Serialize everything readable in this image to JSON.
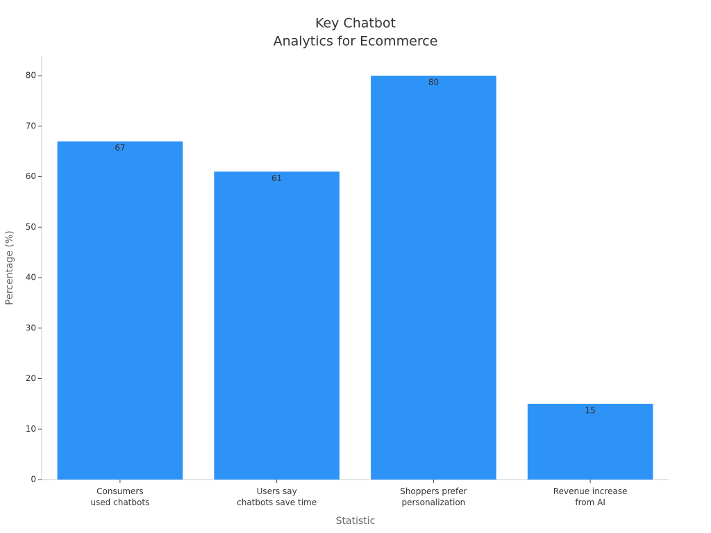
{
  "chart_data": {
    "type": "bar",
    "title": [
      "Key Chatbot",
      "Analytics for Ecommerce"
    ],
    "categories": [
      "Consumers\nused chatbots",
      "Users say\nchatbots save time",
      "Shoppers prefer\npersonalization",
      "Revenue increase\nfrom AI"
    ],
    "values": [
      67,
      61,
      80,
      15
    ],
    "color": "#2e93f7",
    "x_label": "Statistic",
    "y_label": "Percentage (%)",
    "ylim": [
      0,
      84
    ],
    "yticks": [
      0,
      10,
      20,
      30,
      40,
      50,
      60,
      70,
      80
    ],
    "grid": false
  }
}
